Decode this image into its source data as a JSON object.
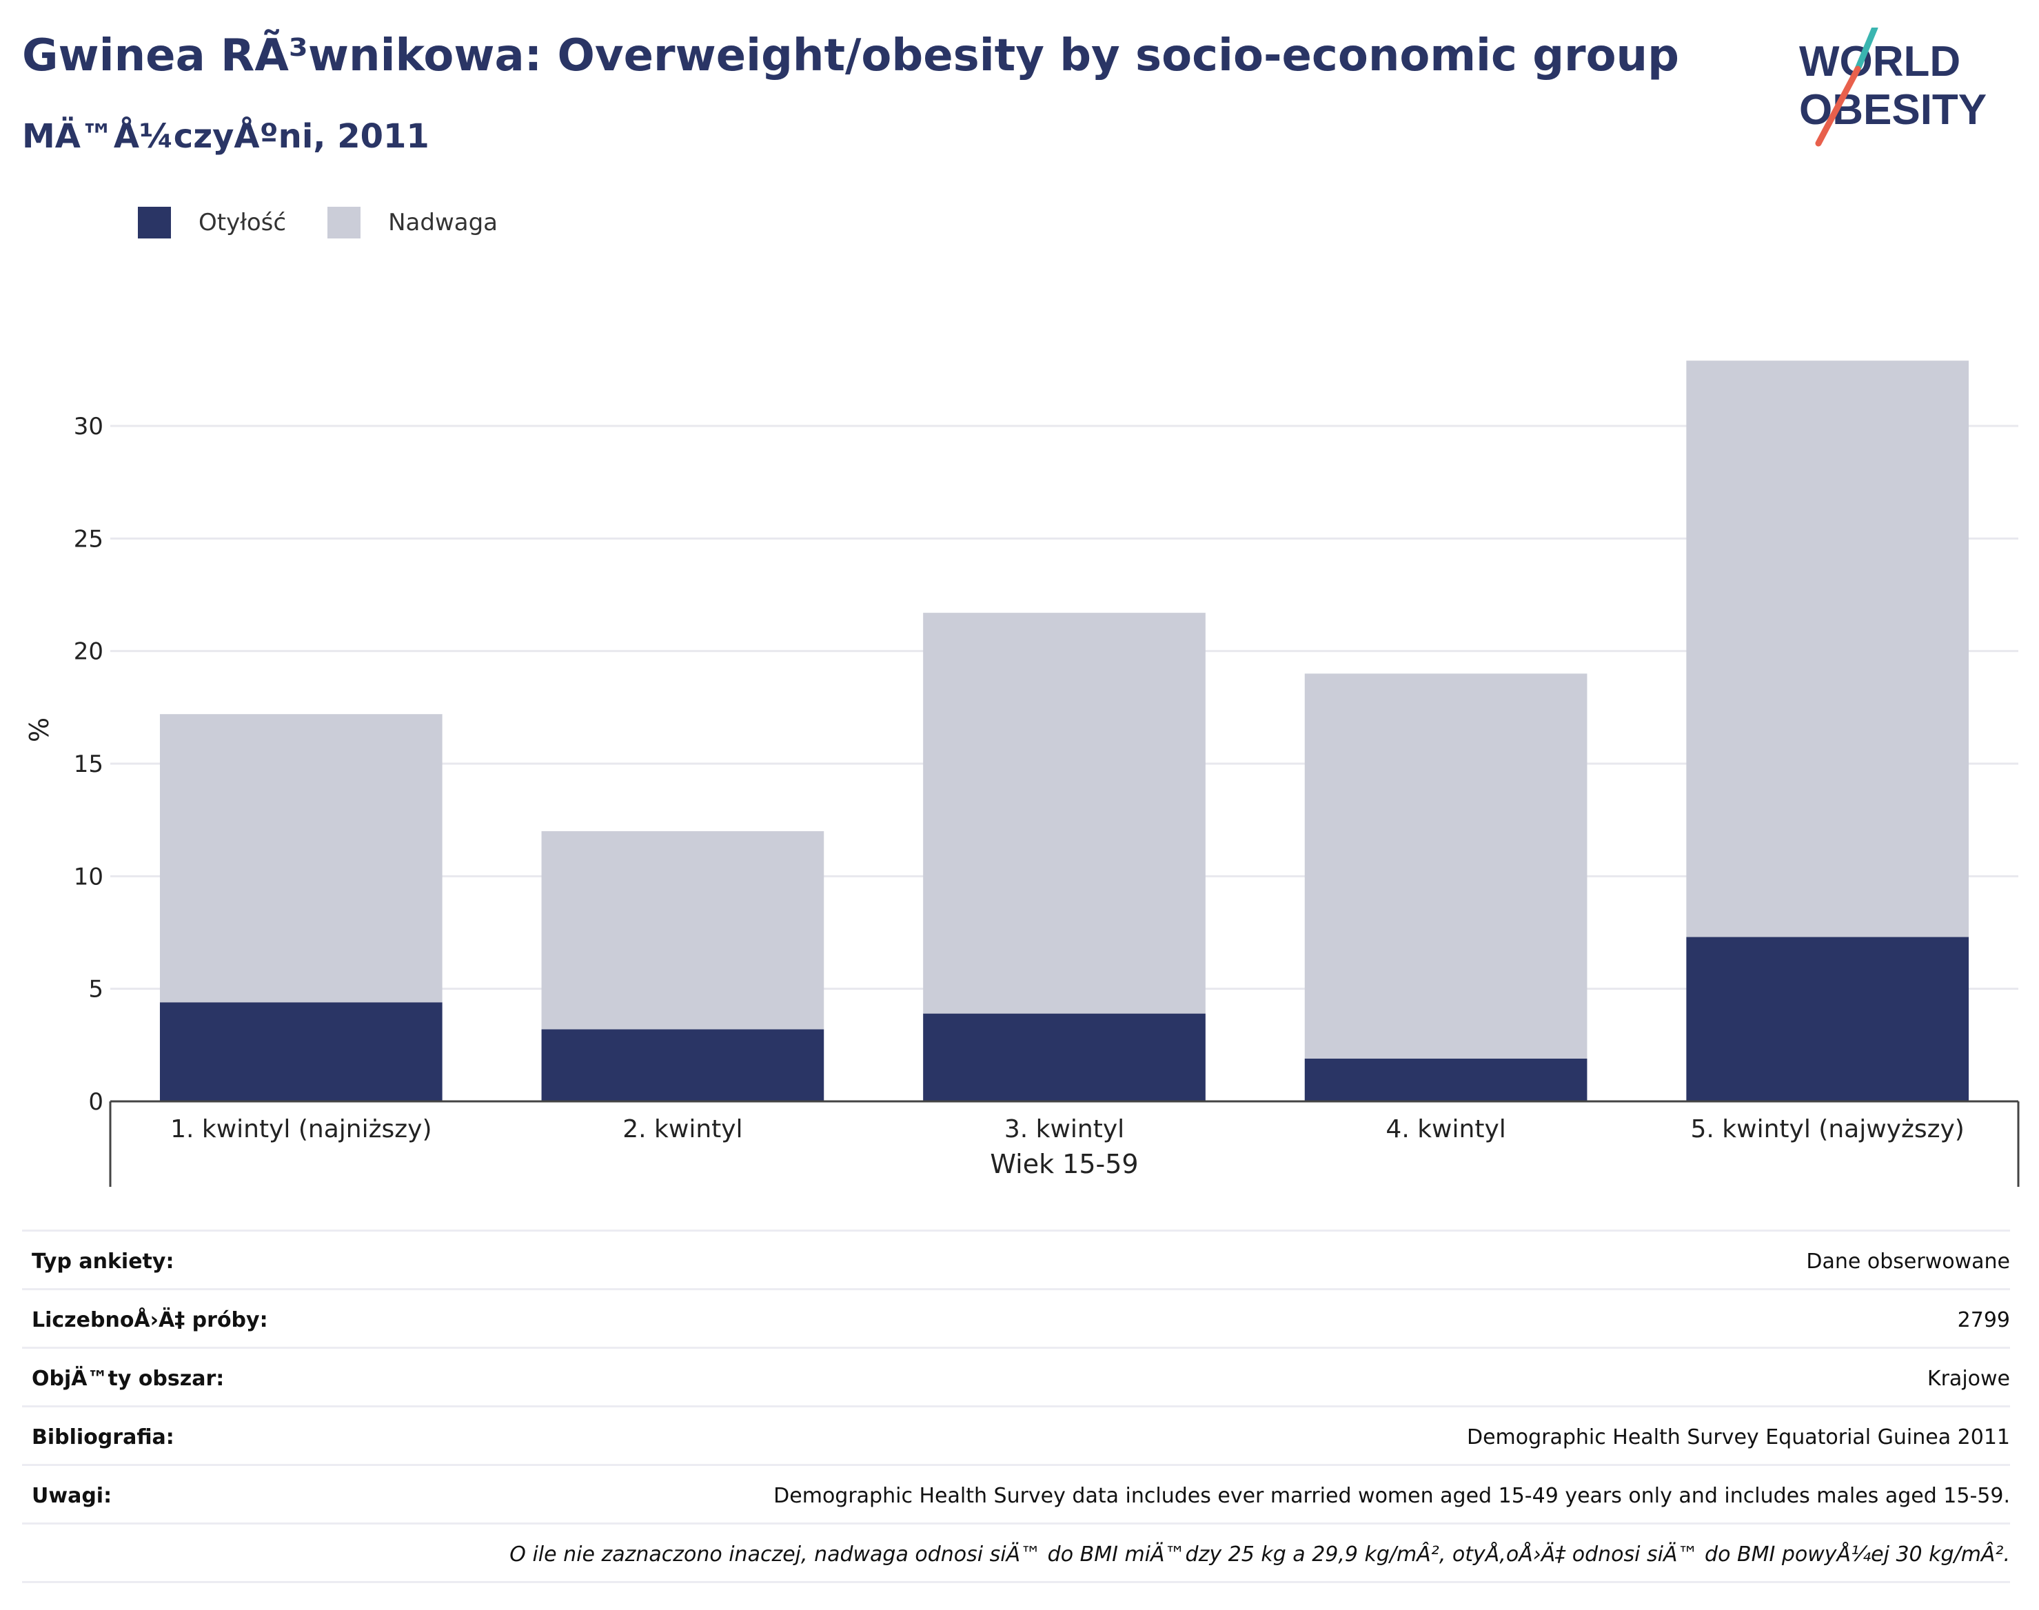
{
  "header": {
    "title": "Gwinea RÃ³wnikowa: Overweight/obesity by socio-economic group",
    "subtitle": "MÄ™Å¼czyÅºni, 2011"
  },
  "logo": {
    "line1": "WORLD",
    "line2": "OBESITY",
    "accent_colors": [
      "#3ab5b0",
      "#e8604c"
    ]
  },
  "colors": {
    "obesity": "#2a3565",
    "overweight": "#cbcdd8",
    "title": "#2a3565"
  },
  "legend": [
    {
      "label": "Otyłość",
      "color": "#2a3565"
    },
    {
      "label": "Nadwaga",
      "color": "#cbcdd8"
    }
  ],
  "chart_data": {
    "type": "bar",
    "stacked": true,
    "categories": [
      "1. kwintyl (najniższy)",
      "2. kwintyl",
      "3. kwintyl",
      "4. kwintyl",
      "5. kwintyl (najwyższy)"
    ],
    "series": [
      {
        "name": "Otyłość",
        "values": [
          4.4,
          3.2,
          3.9,
          1.9,
          7.3
        ]
      },
      {
        "name": "Nadwaga",
        "values": [
          12.8,
          8.8,
          17.8,
          17.1,
          25.6
        ]
      }
    ],
    "ylabel": "%",
    "xlabel": "Wiek 15-59",
    "ylim": [
      0,
      33
    ],
    "yticks": [
      0,
      5,
      10,
      15,
      20,
      25,
      30
    ],
    "grid": true,
    "legend_position": "top-left"
  },
  "meta": [
    {
      "label": "Typ ankiety:",
      "value": "Dane obserwowane"
    },
    {
      "label": "LiczebnoÅ›Ä‡ próby:",
      "value": "2799"
    },
    {
      "label": "ObjÄ™ty obszar:",
      "value": "Krajowe"
    },
    {
      "label": "Bibliografia:",
      "value": "Demographic Health Survey Equatorial Guinea 2011"
    },
    {
      "label": "Uwagi:",
      "value": "Demographic Health Survey data includes ever married women aged 15-49 years only and includes males aged 15-59."
    }
  ],
  "note": "O ile nie zaznaczono inaczej, nadwaga odnosi siÄ™ do BMI miÄ™dzy 25 kg a 29,9 kg/mÂ², otyÅ‚oÅ›Ä‡ odnosi siÄ™ do BMI powyÅ¼ej 30 kg/mÂ²."
}
